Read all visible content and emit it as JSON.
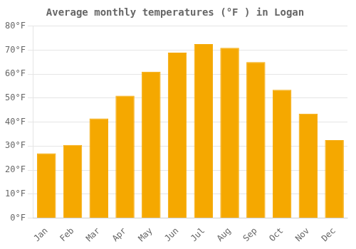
{
  "chart_data": {
    "type": "bar",
    "title": "Average monthly temperatures (°F ) in Logan",
    "categories": [
      "Jan",
      "Feb",
      "Mar",
      "Apr",
      "May",
      "Jun",
      "Jul",
      "Aug",
      "Sep",
      "Oct",
      "Nov",
      "Dec"
    ],
    "values": [
      27,
      30.5,
      41.5,
      51,
      61,
      69,
      72.5,
      71,
      65,
      53.5,
      43.5,
      32.5
    ],
    "color": "#F5A800",
    "ylim": [
      0,
      80
    ],
    "yticks": [
      {
        "value": 0,
        "label": "0°F"
      },
      {
        "value": 10,
        "label": "10°F"
      },
      {
        "value": 20,
        "label": "20°F"
      },
      {
        "value": 30,
        "label": "30°F"
      },
      {
        "value": 40,
        "label": "40°F"
      },
      {
        "value": 50,
        "label": "50°F"
      },
      {
        "value": 60,
        "label": "60°F"
      },
      {
        "value": 70,
        "label": "70°F"
      },
      {
        "value": 80,
        "label": "80°F"
      }
    ],
    "grid": true
  }
}
